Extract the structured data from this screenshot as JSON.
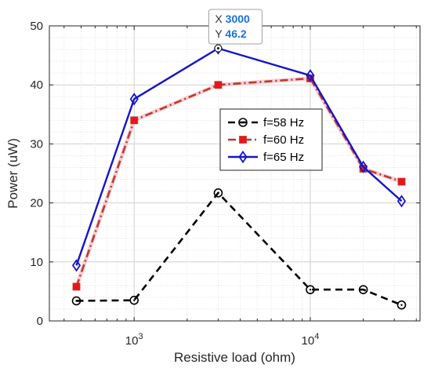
{
  "chart_data": {
    "type": "line",
    "xlabel": "Resistive load (ohm)",
    "ylabel": "Power (uW)",
    "xscale": "log",
    "xlim": [
      330,
      42000
    ],
    "ylim": [
      0,
      50
    ],
    "yticks": [
      0,
      10,
      20,
      30,
      40,
      50
    ],
    "xticks": [
      {
        "value": 1000,
        "base": "10",
        "exp": "3"
      },
      {
        "value": 10000,
        "base": "10",
        "exp": "4"
      }
    ],
    "grid": true,
    "legend_position": "center-right",
    "x": [
      470,
      1000,
      3000,
      10000,
      20000,
      33000
    ],
    "series": [
      {
        "name": "f=58 Hz",
        "values": [
          3.4,
          3.5,
          21.7,
          5.3,
          5.3,
          2.7
        ],
        "color": "#000000",
        "linestyle": "dashed",
        "marker": "circle"
      },
      {
        "name": "f=60 Hz",
        "values": [
          5.8,
          34.0,
          40.0,
          41.1,
          25.8,
          23.6
        ],
        "color": "#c0392b",
        "marker_color": "#e8161b",
        "linestyle": "dashdot",
        "marker": "square"
      },
      {
        "name": "f=65 Hz",
        "values": [
          9.4,
          37.6,
          46.2,
          41.6,
          26.1,
          20.3
        ],
        "color": "#1515c8",
        "linestyle": "solid",
        "marker": "diamond"
      }
    ],
    "datatip": {
      "x_label": "X",
      "x_value": "3000",
      "y_label": "Y",
      "y_value": "46.2"
    }
  }
}
